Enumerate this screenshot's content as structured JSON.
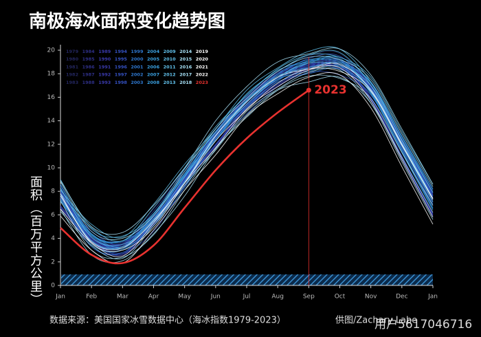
{
  "chart_data": {
    "type": "line",
    "title": "南极海冰面积变化趋势图",
    "ylabel": "面积（百万平方公里）",
    "source": "数据来源：美国国家冰雪数据中心（海冰指数1979-2023）",
    "credit": "供图/Zachary Labe",
    "watermark": "用户5617046716",
    "categories": [
      "Jan",
      "Feb",
      "Mar",
      "Apr",
      "May",
      "Jun",
      "Jul",
      "Aug",
      "Sep",
      "Oct",
      "Nov",
      "Dec",
      "Jan"
    ],
    "ylim": [
      0,
      20
    ],
    "yticks": [
      0,
      2,
      4,
      6,
      8,
      10,
      12,
      14,
      16,
      18,
      20
    ],
    "series": [
      {
        "name": "1979",
        "color": "#23265e",
        "values": [
          8.3,
          4.1,
          3.5,
          5.4,
          9.2,
          12.8,
          15.4,
          17.7,
          18.9,
          18.7,
          17.0,
          12.4,
          7.9
        ]
      },
      {
        "name": "1980",
        "color": "#23265e",
        "values": [
          7.7,
          4.8,
          3.7,
          6.5,
          9.9,
          12.9,
          16.2,
          18.1,
          19.5,
          19.7,
          16.9,
          11.9,
          7.0
        ]
      },
      {
        "name": "1981",
        "color": "#23265e",
        "values": [
          7.5,
          3.6,
          3.1,
          5.4,
          8.6,
          12.6,
          15.5,
          17.6,
          18.3,
          18.7,
          16.5,
          11.9,
          7.2
        ]
      },
      {
        "name": "1982",
        "color": "#23265e",
        "values": [
          8.4,
          4.2,
          3.6,
          5.5,
          9.3,
          12.9,
          15.5,
          17.8,
          19.0,
          18.8,
          17.1,
          12.5,
          8.0
        ]
      },
      {
        "name": "1983",
        "color": "#23265e",
        "values": [
          6.7,
          3.8,
          2.7,
          5.5,
          8.9,
          11.9,
          15.2,
          17.1,
          18.5,
          18.7,
          15.9,
          10.9,
          6.0
        ]
      },
      {
        "name": "1984",
        "color": "#2e2f86",
        "values": [
          7.6,
          3.7,
          3.2,
          5.5,
          8.7,
          12.7,
          15.6,
          17.7,
          18.4,
          18.8,
          16.6,
          12.0,
          7.3
        ]
      },
      {
        "name": "1985",
        "color": "#2e2f86",
        "values": [
          8.6,
          4.4,
          3.8,
          5.7,
          9.5,
          13.1,
          15.7,
          18.0,
          19.2,
          19.0,
          17.3,
          12.7,
          8.2
        ]
      },
      {
        "name": "1986",
        "color": "#2e2f86",
        "values": [
          6.5,
          3.6,
          2.5,
          5.3,
          8.7,
          11.7,
          15.0,
          16.9,
          18.3,
          18.5,
          15.7,
          10.7,
          5.8
        ]
      },
      {
        "name": "1987",
        "color": "#2e2f86",
        "values": [
          7.7,
          3.8,
          3.3,
          5.6,
          8.8,
          12.8,
          15.7,
          17.8,
          18.5,
          18.9,
          16.7,
          12.1,
          7.4
        ]
      },
      {
        "name": "1988",
        "color": "#2e2f86",
        "values": [
          8.0,
          3.8,
          3.2,
          5.1,
          8.9,
          12.5,
          15.1,
          17.4,
          18.6,
          18.4,
          16.7,
          12.1,
          7.6
        ]
      },
      {
        "name": "1989",
        "color": "#3a3aad",
        "values": [
          6.6,
          3.7,
          2.6,
          5.4,
          8.8,
          11.8,
          15.1,
          17.0,
          18.4,
          18.6,
          15.8,
          10.8,
          5.9
        ]
      },
      {
        "name": "1990",
        "color": "#3a3aad",
        "values": [
          8.0,
          4.1,
          3.6,
          5.9,
          9.1,
          13.1,
          16.0,
          18.1,
          18.8,
          19.2,
          17.0,
          12.4,
          7.7
        ]
      },
      {
        "name": "1991",
        "color": "#3a3aad",
        "values": [
          8.1,
          3.9,
          3.3,
          5.2,
          9.0,
          12.6,
          15.2,
          17.5,
          18.7,
          18.5,
          16.8,
          12.2,
          7.7
        ]
      },
      {
        "name": "1992",
        "color": "#3a3aad",
        "values": [
          6.8,
          3.9,
          2.8,
          5.6,
          9.0,
          12.0,
          15.3,
          17.2,
          18.6,
          18.8,
          16.0,
          11.0,
          6.1
        ]
      },
      {
        "name": "1993",
        "color": "#3a3aad",
        "values": [
          7.8,
          3.9,
          3.4,
          5.7,
          8.9,
          12.9,
          15.8,
          17.9,
          18.6,
          19.0,
          16.8,
          12.2,
          7.5
        ]
      },
      {
        "name": "1994",
        "color": "#3552c4",
        "values": [
          8.2,
          4.0,
          3.4,
          5.3,
          9.1,
          12.7,
          15.3,
          17.6,
          18.8,
          18.6,
          16.9,
          12.3,
          7.8
        ]
      },
      {
        "name": "1995",
        "color": "#3552c4",
        "values": [
          6.7,
          3.8,
          2.7,
          5.5,
          8.9,
          11.9,
          15.2,
          17.1,
          18.5,
          18.7,
          15.9,
          10.9,
          6.0
        ]
      },
      {
        "name": "1996",
        "color": "#3552c4",
        "values": [
          7.9,
          4.0,
          3.5,
          5.8,
          9.0,
          13.0,
          15.9,
          18.0,
          18.7,
          19.1,
          16.9,
          12.3,
          7.6
        ]
      },
      {
        "name": "1997",
        "color": "#3552c4",
        "values": [
          7.5,
          3.3,
          2.7,
          4.6,
          8.4,
          12.0,
          14.6,
          16.9,
          18.1,
          17.9,
          16.2,
          11.6,
          7.1
        ]
      },
      {
        "name": "1998",
        "color": "#3552c4",
        "values": [
          7.5,
          4.6,
          3.5,
          6.3,
          9.7,
          12.7,
          16.0,
          17.9,
          19.3,
          19.5,
          16.7,
          11.7,
          6.8
        ]
      },
      {
        "name": "1999",
        "color": "#2e78d0",
        "values": [
          7.6,
          3.7,
          3.2,
          5.5,
          8.7,
          12.7,
          15.6,
          17.7,
          18.4,
          18.8,
          16.6,
          12.0,
          7.3
        ]
      },
      {
        "name": "2000",
        "color": "#2e78d0",
        "values": [
          8.0,
          3.8,
          3.2,
          5.1,
          8.9,
          12.5,
          15.1,
          17.4,
          18.6,
          18.4,
          16.7,
          12.1,
          7.6
        ]
      },
      {
        "name": "2001",
        "color": "#2e78d0",
        "values": [
          7.2,
          4.3,
          3.2,
          6.0,
          9.4,
          12.4,
          15.7,
          17.6,
          19.0,
          19.2,
          16.4,
          11.4,
          6.5
        ]
      },
      {
        "name": "2002",
        "color": "#2e78d0",
        "values": [
          7.2,
          3.3,
          2.8,
          5.1,
          8.3,
          12.3,
          15.2,
          17.3,
          18.0,
          18.4,
          16.2,
          11.6,
          6.9
        ]
      },
      {
        "name": "2003",
        "color": "#2e78d0",
        "values": [
          8.5,
          4.3,
          3.7,
          5.6,
          9.4,
          13.0,
          15.6,
          17.9,
          19.1,
          18.9,
          17.2,
          12.6,
          8.1
        ]
      },
      {
        "name": "2004",
        "color": "#3aa0e0",
        "values": [
          7.1,
          4.2,
          3.1,
          5.9,
          9.3,
          12.3,
          15.6,
          17.5,
          18.9,
          19.1,
          16.3,
          11.3,
          6.4
        ]
      },
      {
        "name": "2005",
        "color": "#3aa0e0",
        "values": [
          7.4,
          3.5,
          3.0,
          5.3,
          8.5,
          12.5,
          15.4,
          17.5,
          18.2,
          18.6,
          16.4,
          11.8,
          7.1
        ]
      },
      {
        "name": "2006",
        "color": "#3aa0e0",
        "values": [
          8.6,
          4.4,
          3.8,
          5.7,
          9.5,
          13.1,
          15.7,
          18.0,
          19.2,
          19.0,
          17.3,
          12.7,
          8.2
        ]
      },
      {
        "name": "2007",
        "color": "#3aa0e0",
        "values": [
          7.3,
          4.4,
          3.3,
          6.1,
          9.5,
          12.5,
          15.8,
          17.7,
          19.1,
          19.3,
          16.5,
          11.5,
          6.6
        ]
      },
      {
        "name": "2008",
        "color": "#3aa0e0",
        "values": [
          8.2,
          4.3,
          3.8,
          6.1,
          9.3,
          13.3,
          16.2,
          18.3,
          19.0,
          19.4,
          17.2,
          12.6,
          7.9
        ]
      },
      {
        "name": "2009",
        "color": "#62c3ee",
        "values": [
          8.3,
          4.1,
          3.5,
          5.4,
          9.2,
          12.8,
          15.4,
          17.7,
          18.9,
          18.7,
          17.0,
          12.4,
          7.9
        ]
      },
      {
        "name": "2010",
        "color": "#62c3ee",
        "values": [
          7.8,
          4.9,
          3.8,
          6.6,
          10.0,
          13.0,
          16.3,
          18.2,
          19.6,
          19.8,
          17.0,
          12.0,
          7.1
        ]
      },
      {
        "name": "2011",
        "color": "#62c3ee",
        "values": [
          7.7,
          3.8,
          3.3,
          5.6,
          8.8,
          12.8,
          15.7,
          17.8,
          18.5,
          18.9,
          16.7,
          12.1,
          7.4
        ]
      },
      {
        "name": "2012",
        "color": "#62c3ee",
        "values": [
          9.0,
          4.8,
          4.2,
          6.1,
          9.9,
          13.5,
          16.1,
          18.4,
          19.6,
          19.4,
          17.7,
          13.1,
          8.6
        ]
      },
      {
        "name": "2013",
        "color": "#62c3ee",
        "values": [
          8.1,
          5.2,
          4.1,
          6.9,
          10.3,
          13.3,
          16.6,
          18.5,
          19.9,
          20.1,
          17.3,
          12.3,
          7.4
        ]
      },
      {
        "name": "2014",
        "color": "#a8e2f8",
        "values": [
          8.9,
          5.0,
          4.5,
          6.8,
          10.0,
          14.0,
          16.9,
          19.0,
          19.7,
          20.1,
          17.9,
          13.3,
          8.6
        ]
      },
      {
        "name": "2015",
        "color": "#a8e2f8",
        "values": [
          8.8,
          4.6,
          4.0,
          5.9,
          9.7,
          13.3,
          15.9,
          18.2,
          19.4,
          19.2,
          17.5,
          12.9,
          8.4
        ]
      },
      {
        "name": "2016",
        "color": "#a8e2f8",
        "values": [
          6.3,
          3.4,
          2.3,
          5.1,
          8.5,
          11.5,
          14.8,
          16.7,
          18.1,
          18.3,
          15.5,
          10.5,
          5.6
        ]
      },
      {
        "name": "2017",
        "color": "#a8e2f8",
        "values": [
          6.5,
          2.6,
          2.1,
          4.4,
          7.6,
          11.6,
          14.5,
          16.6,
          17.3,
          17.7,
          15.5,
          10.9,
          6.2
        ]
      },
      {
        "name": "2018",
        "color": "#a8e2f8",
        "values": [
          7.2,
          3.0,
          2.4,
          4.3,
          8.1,
          11.7,
          14.3,
          16.6,
          17.8,
          17.6,
          15.9,
          11.3,
          6.8
        ]
      },
      {
        "name": "2019",
        "color": "#ffffff",
        "values": [
          6.5,
          3.6,
          2.5,
          5.3,
          8.7,
          11.7,
          15.0,
          16.9,
          18.3,
          18.5,
          15.7,
          10.7,
          5.8
        ]
      },
      {
        "name": "2020",
        "color": "#ffffff",
        "values": [
          7.6,
          3.7,
          3.2,
          5.5,
          8.7,
          12.7,
          15.6,
          17.7,
          18.4,
          18.8,
          16.6,
          12.0,
          7.3
        ]
      },
      {
        "name": "2021",
        "color": "#ffffff",
        "values": [
          7.8,
          3.6,
          3.0,
          4.9,
          8.7,
          12.3,
          14.9,
          17.2,
          18.4,
          18.2,
          16.5,
          11.9,
          7.4
        ]
      },
      {
        "name": "2022",
        "color": "#ffffff",
        "values": [
          5.9,
          3.0,
          1.9,
          4.7,
          8.1,
          11.1,
          14.4,
          16.3,
          17.7,
          17.9,
          15.1,
          10.1,
          5.2
        ]
      },
      {
        "name": "2023",
        "color": "#e8322f",
        "values": [
          4.9,
          2.6,
          1.9,
          3.4,
          6.6,
          9.8,
          12.5,
          14.7,
          16.6,
          null,
          null,
          null,
          null
        ]
      }
    ]
  }
}
